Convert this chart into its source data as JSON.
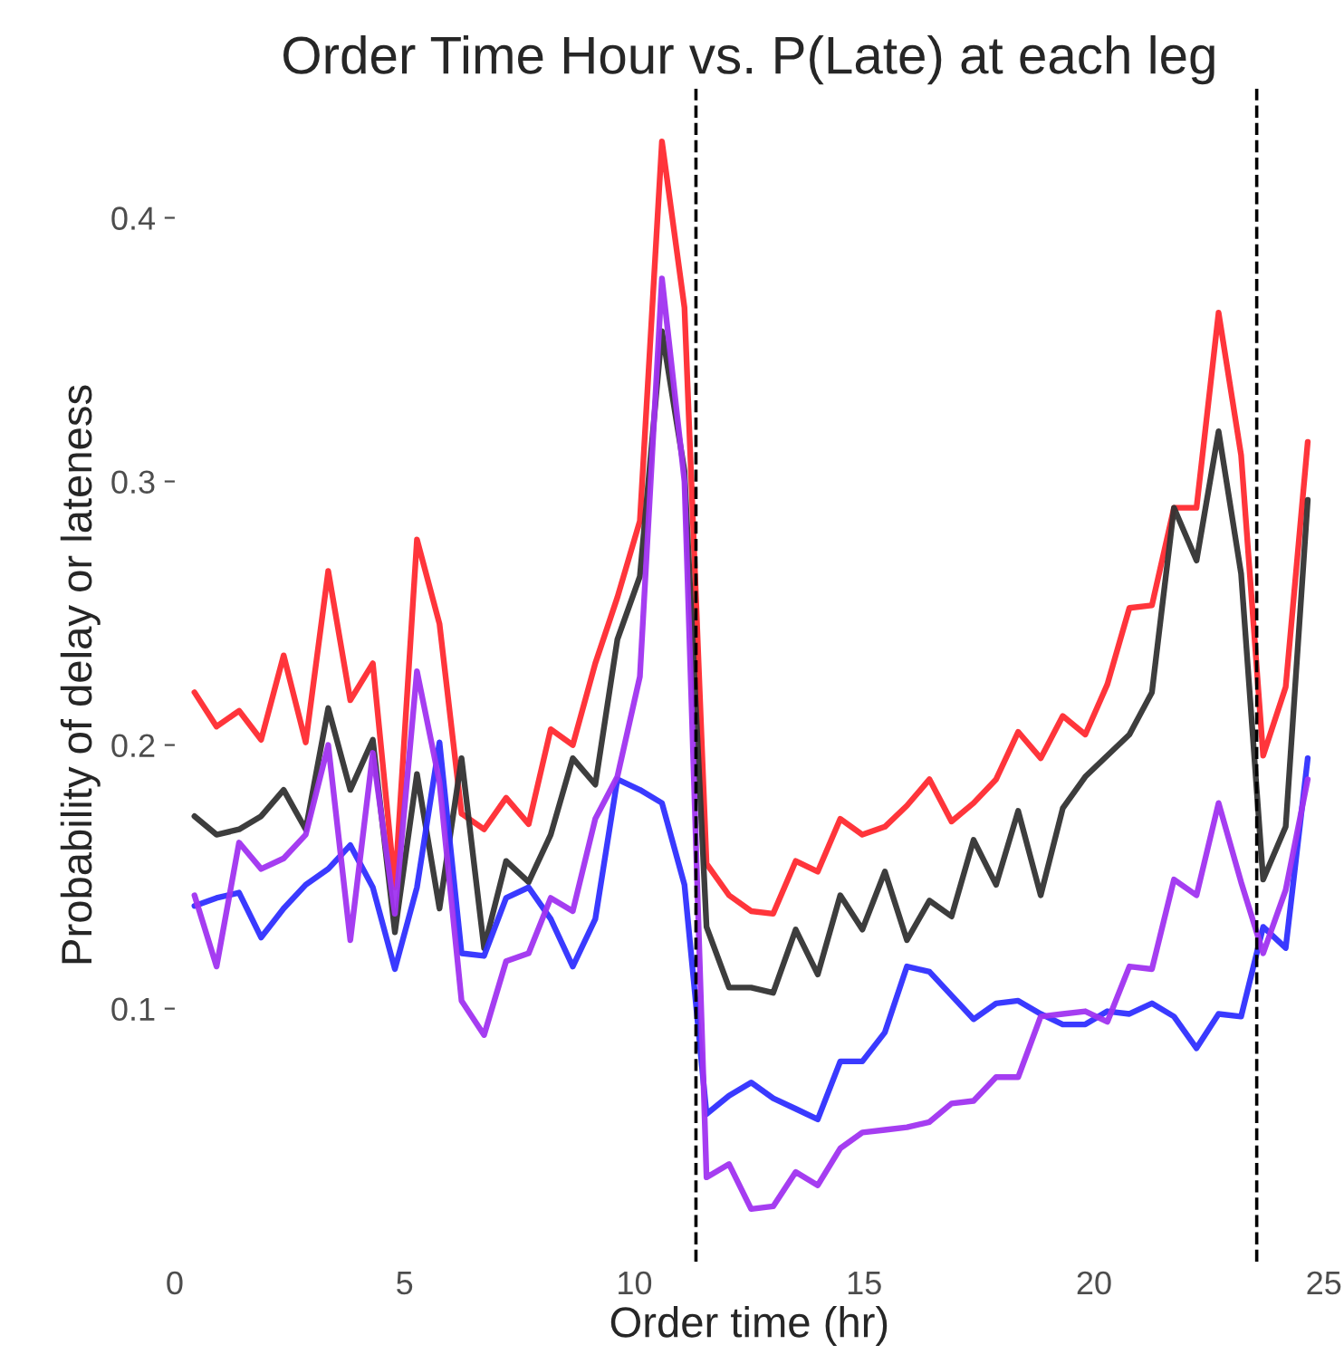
{
  "chart_data": {
    "type": "line",
    "title": "Order Time Hour vs. P(Late) at each leg",
    "xlabel": "Order time (hr)",
    "ylabel": "Probability of delay or lateness",
    "x": [
      0.43,
      0.91,
      1.4,
      1.88,
      2.37,
      2.85,
      3.34,
      3.82,
      4.31,
      4.79,
      5.27,
      5.76,
      6.24,
      6.73,
      7.21,
      7.7,
      8.18,
      8.66,
      9.15,
      9.63,
      10.12,
      10.6,
      11.09,
      11.57,
      12.06,
      12.54,
      13.02,
      13.51,
      13.99,
      14.48,
      14.96,
      15.45,
      15.93,
      16.42,
      16.9,
      17.38,
      17.87,
      18.35,
      18.84,
      19.32,
      19.81,
      20.29,
      20.77,
      21.26,
      21.74,
      22.23,
      22.71,
      23.2,
      23.68,
      24.17,
      24.65
    ],
    "series": [
      {
        "color": "#ff2a30",
        "values": [
          0.22,
          0.207,
          0.213,
          0.202,
          0.234,
          0.201,
          0.266,
          0.217,
          0.231,
          0.146,
          0.278,
          0.246,
          0.174,
          0.168,
          0.18,
          0.17,
          0.206,
          0.2,
          0.231,
          0.256,
          0.285,
          0.429,
          0.366,
          0.155,
          0.143,
          0.137,
          0.136,
          0.156,
          0.152,
          0.172,
          0.166,
          0.169,
          0.177,
          0.187,
          0.171,
          0.178,
          0.187,
          0.205,
          0.195,
          0.211,
          0.204,
          0.223,
          0.252,
          0.253,
          0.29,
          0.29,
          0.364,
          0.31,
          0.196,
          0.222,
          0.315
        ]
      },
      {
        "color": "#333333",
        "values": [
          0.173,
          0.166,
          0.168,
          0.173,
          0.183,
          0.168,
          0.214,
          0.183,
          0.202,
          0.129,
          0.189,
          0.138,
          0.195,
          0.123,
          0.156,
          0.148,
          0.166,
          0.195,
          0.185,
          0.24,
          0.264,
          0.357,
          0.304,
          0.131,
          0.108,
          0.108,
          0.106,
          0.13,
          0.113,
          0.143,
          0.13,
          0.152,
          0.126,
          0.141,
          0.135,
          0.164,
          0.147,
          0.175,
          0.143,
          0.176,
          0.188,
          0.196,
          0.204,
          0.22,
          0.29,
          0.27,
          0.319,
          0.265,
          0.149,
          0.169,
          0.293
        ]
      },
      {
        "color": "#2f2fff",
        "values": [
          0.139,
          0.142,
          0.144,
          0.127,
          0.138,
          0.147,
          0.153,
          0.162,
          0.146,
          0.115,
          0.146,
          0.201,
          0.121,
          0.12,
          0.142,
          0.146,
          0.134,
          0.116,
          0.134,
          0.187,
          0.183,
          0.178,
          0.147,
          0.06,
          0.067,
          0.072,
          0.066,
          0.062,
          0.058,
          0.08,
          0.08,
          0.091,
          0.116,
          0.114,
          0.105,
          0.096,
          0.102,
          0.103,
          0.098,
          0.094,
          0.094,
          0.099,
          0.098,
          0.102,
          0.097,
          0.085,
          0.098,
          0.097,
          0.131,
          0.123,
          0.195
        ]
      },
      {
        "color": "#a033f0",
        "values": [
          0.143,
          0.116,
          0.163,
          0.153,
          0.157,
          0.166,
          0.2,
          0.126,
          0.197,
          0.136,
          0.228,
          0.186,
          0.103,
          0.09,
          0.118,
          0.121,
          0.142,
          0.137,
          0.172,
          0.188,
          0.226,
          0.377,
          0.3,
          0.036,
          0.041,
          0.024,
          0.025,
          0.038,
          0.033,
          0.047,
          0.053,
          0.054,
          0.055,
          0.057,
          0.064,
          0.065,
          0.074,
          0.074,
          0.097,
          0.098,
          0.099,
          0.095,
          0.116,
          0.115,
          0.149,
          0.143,
          0.178,
          0.148,
          0.121,
          0.145,
          0.187
        ]
      }
    ],
    "ref_lines": [
      {
        "axis": "x",
        "value": 11.34,
        "line_style": "dashed",
        "color": "#000000"
      },
      {
        "axis": "x",
        "value": 23.54,
        "line_style": "dashed",
        "color": "#000000"
      }
    ],
    "xlim": [
      0,
      25
    ],
    "ylim": [
      0.004,
      0.449
    ],
    "xticks": [
      0,
      5,
      10,
      15,
      20,
      25
    ],
    "yticks": [
      0.1,
      0.2,
      0.3,
      0.4
    ],
    "grid": false,
    "legend": false
  }
}
